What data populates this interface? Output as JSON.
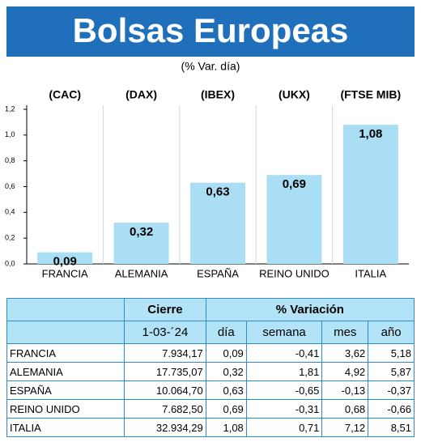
{
  "chart_data": {
    "type": "bar",
    "title": "Bolsas Europeas",
    "subtitle": "(% Var. día)",
    "categories": [
      "FRANCIA",
      "ALEMANIA",
      "ESPAÑA",
      "REINO UNIDO",
      "ITALIA"
    ],
    "index_labels": [
      "(CAC)",
      "(DAX)",
      "(IBEX)",
      "(UKX)",
      "(FTSE MIB)"
    ],
    "values": [
      0.09,
      0.32,
      0.63,
      0.69,
      1.08
    ],
    "value_labels": [
      "0,09",
      "0,32",
      "0,63",
      "0,69",
      "1,08"
    ],
    "color": "#a9def4",
    "ylim": [
      0,
      1.2
    ],
    "yticks": [
      {
        "value": 0,
        "label": "0,0"
      },
      {
        "value": 0.2,
        "label": "0,2"
      },
      {
        "value": 0.4,
        "label": "0,4"
      },
      {
        "value": 0.6,
        "label": "0,6"
      },
      {
        "value": 0.8,
        "label": "0,8"
      },
      {
        "value": 1.0,
        "label": "1,0"
      },
      {
        "value": 1.2,
        "label": "1,2"
      }
    ]
  },
  "table": {
    "groups": [
      "Cierre",
      "% Variación"
    ],
    "columns": [
      "1-03-´24",
      "día",
      "semana",
      "mes",
      "año"
    ],
    "rows": [
      [
        "FRANCIA",
        "7.934,17",
        "0,09",
        "-0,41",
        "3,62",
        "5,18"
      ],
      [
        "ALEMANIA",
        "17.735,07",
        "0,32",
        "1,81",
        "4,92",
        "5,87"
      ],
      [
        "ESPAÑA",
        "10.064,70",
        "0,63",
        "-0,65",
        "-0,13",
        "-0,37"
      ],
      [
        "REINO UNIDO",
        "7.682,50",
        "0,69",
        "-0,31",
        "0,68",
        "-0,66"
      ],
      [
        "ITALIA",
        "32.934,29",
        "1,08",
        "0,71",
        "7,12",
        "8,51"
      ]
    ]
  }
}
